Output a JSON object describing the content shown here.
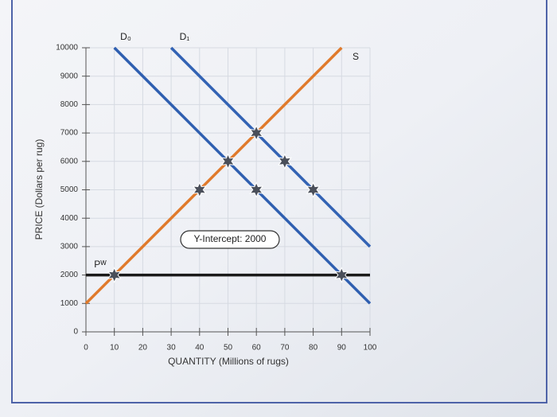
{
  "chart_data": {
    "type": "line",
    "xlabel": "QUANTITY (Millions of rugs)",
    "ylabel": "PRICE (Dollars per rug)",
    "xlim": [
      0,
      100
    ],
    "xticks": [
      0,
      10,
      20,
      30,
      40,
      50,
      60,
      70,
      80,
      90,
      100
    ],
    "ylim": [
      0,
      10000
    ],
    "yticks": [
      0,
      1000,
      2000,
      3000,
      4000,
      5000,
      6000,
      7000,
      8000,
      9000,
      10000
    ],
    "grid": true,
    "series": [
      {
        "name": "D₀",
        "color": "#2f5fb0",
        "x": [
          10,
          100
        ],
        "values": [
          10000,
          1000
        ]
      },
      {
        "name": "D₁",
        "color": "#3363b4",
        "x": [
          30,
          100
        ],
        "values": [
          10000,
          3000
        ]
      },
      {
        "name": "S",
        "color": "#e07a2c",
        "x": [
          0,
          90
        ],
        "values": [
          1000,
          10000
        ]
      },
      {
        "name": "Pᵂ",
        "color": "#1a1a1a",
        "x": [
          0,
          100
        ],
        "values": [
          2000,
          2000
        ]
      }
    ],
    "points": {
      "color": "#4a4f5a",
      "x": [
        10,
        40,
        50,
        60,
        60,
        70,
        80,
        90
      ],
      "y": [
        2000,
        5000,
        6000,
        7000,
        5000,
        6000,
        5000,
        2000
      ]
    },
    "annotation": "Y-Intercept: 2000"
  }
}
